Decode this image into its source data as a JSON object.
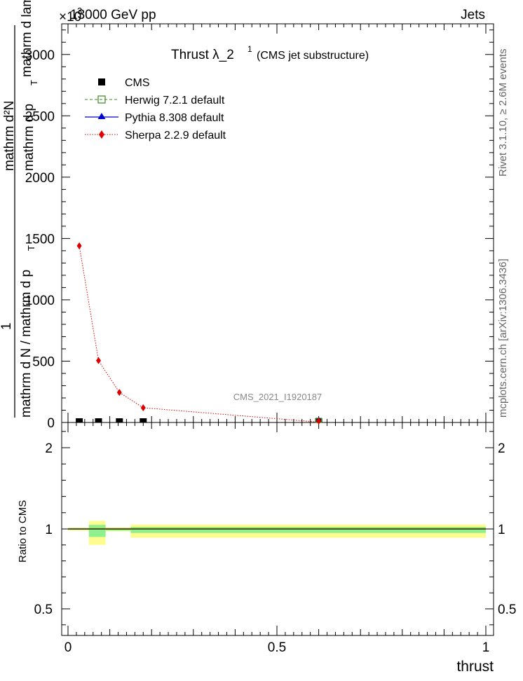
{
  "header": {
    "left": "13000 GeV pp",
    "right": "Jets"
  },
  "side_labels": {
    "rivet": "Rivet 3.1.10, ≥ 2.6M events",
    "mcplots": "mcplots.cern.ch [arXiv:1306.3436]"
  },
  "analysis_id": "CMS_2021_I1920187",
  "chart_data": [
    {
      "type": "line",
      "title": "Thrust λ_2",
      "title_sup": "1",
      "subtitle": "(CMS jet substructure)",
      "y_multiplier": "×10",
      "y_multiplier_exp": "3",
      "ylabel": {
        "top": "mathrm d²N",
        "top_sub": "mathrm d p",
        "top_sub_T": "T",
        "top_sub2": "mathrm d lambda",
        "one": "1",
        "bottom": "mathrm d N / mathrm d p",
        "bottom_T": "T"
      },
      "xlim": [
        0,
        1
      ],
      "ylim": [
        0,
        3250
      ],
      "y_ticks": [
        0,
        500,
        1000,
        1500,
        2000,
        2500,
        3000
      ],
      "y_tick_labels": [
        "0",
        "500",
        "1000",
        "1500",
        "2000",
        "2500",
        "3000"
      ],
      "legend_position": "top-left",
      "series": [
        {
          "name": "CMS",
          "style": "marker",
          "marker": "square-filled",
          "color": "#000000",
          "x": [
            0.027,
            0.073,
            0.123,
            0.18,
            0.6
          ],
          "y": [
            3,
            3,
            3,
            3,
            3
          ]
        },
        {
          "name": "Herwig 7.2.1 default",
          "style": "dashed",
          "marker": "square-open",
          "color": "#3a8a1e",
          "x": [
            0.6
          ],
          "y": [
            5
          ]
        },
        {
          "name": "Pythia 8.308 default",
          "style": "solid",
          "marker": "triangle",
          "color": "#0000cc",
          "x": [
            0.6
          ],
          "y": [
            4
          ]
        },
        {
          "name": "Sherpa 2.2.9 default",
          "style": "dotted",
          "marker": "diamond",
          "color": "#dd0000",
          "x": [
            0.027,
            0.073,
            0.123,
            0.18,
            0.6
          ],
          "y": [
            1440,
            505,
            245,
            120,
            3
          ]
        }
      ]
    },
    {
      "type": "line",
      "ylabel": "Ratio to CMS",
      "xlabel": "thrust",
      "xlim": [
        0,
        1
      ],
      "ylim": [
        0.35,
        2.35
      ],
      "y_ticks": [
        0.5,
        1,
        2
      ],
      "y_tick_labels": [
        "0.5",
        "1",
        "2"
      ],
      "x_ticks": [
        0,
        0.5,
        1
      ],
      "x_tick_labels": [
        "0",
        "0.5",
        "1"
      ],
      "reference_line": 1,
      "bands": [
        {
          "x0": 0.0,
          "x1": 0.05,
          "green": [
            0.995,
            1.005
          ],
          "yellow": [
            0.99,
            1.01
          ]
        },
        {
          "x0": 0.05,
          "x1": 0.09,
          "green": [
            0.95,
            1.05
          ],
          "yellow": [
            0.9,
            1.1
          ]
        },
        {
          "x0": 0.09,
          "x1": 0.15,
          "green": [
            0.99,
            1.01
          ],
          "yellow": [
            0.985,
            1.015
          ]
        },
        {
          "x0": 0.15,
          "x1": 1.0,
          "green": [
            0.975,
            1.025
          ],
          "yellow": [
            0.945,
            1.055
          ]
        }
      ],
      "band_colors": {
        "green": "#8ef08e",
        "yellow": "#fdfd8f"
      }
    }
  ]
}
